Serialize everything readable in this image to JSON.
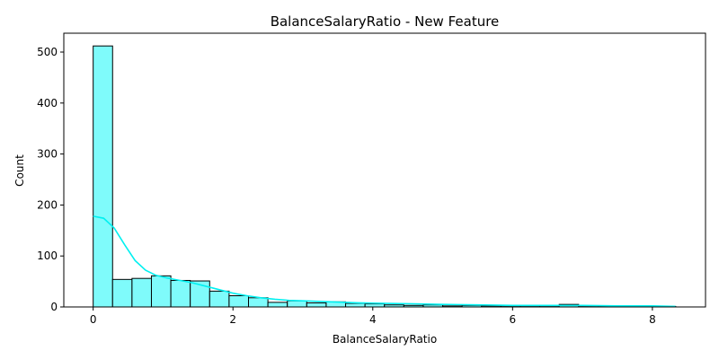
{
  "chart_data": {
    "type": "bar",
    "title": "BalanceSalaryRatio - New Feature",
    "xlabel": "BalanceSalaryRatio",
    "ylabel": "Count",
    "xlim": [
      -0.42,
      8.76
    ],
    "ylim": [
      0,
      537
    ],
    "xticks": [
      0,
      2,
      4,
      6,
      8
    ],
    "yticks": [
      0,
      100,
      200,
      300,
      400,
      500
    ],
    "bin_width": 0.2778,
    "bins": [
      {
        "start": 0.0,
        "count": 512
      },
      {
        "start": 0.2778,
        "count": 54
      },
      {
        "start": 0.5556,
        "count": 56
      },
      {
        "start": 0.8333,
        "count": 61
      },
      {
        "start": 1.1111,
        "count": 52
      },
      {
        "start": 1.3889,
        "count": 51
      },
      {
        "start": 1.6667,
        "count": 31
      },
      {
        "start": 1.9444,
        "count": 22
      },
      {
        "start": 2.2222,
        "count": 18
      },
      {
        "start": 2.5,
        "count": 9
      },
      {
        "start": 2.7778,
        "count": 12
      },
      {
        "start": 3.0556,
        "count": 8
      },
      {
        "start": 3.3333,
        "count": 10
      },
      {
        "start": 3.6111,
        "count": 7
      },
      {
        "start": 3.8889,
        "count": 6
      },
      {
        "start": 4.1667,
        "count": 4
      },
      {
        "start": 4.4444,
        "count": 3
      },
      {
        "start": 4.7222,
        "count": 4
      },
      {
        "start": 5.0,
        "count": 2
      },
      {
        "start": 5.2778,
        "count": 3
      },
      {
        "start": 5.5556,
        "count": 2
      },
      {
        "start": 5.8333,
        "count": 2
      },
      {
        "start": 6.1111,
        "count": 2
      },
      {
        "start": 6.3889,
        "count": 2
      },
      {
        "start": 6.6667,
        "count": 5
      },
      {
        "start": 6.9444,
        "count": 2
      },
      {
        "start": 7.2222,
        "count": 1
      },
      {
        "start": 7.5,
        "count": 1
      },
      {
        "start": 7.7778,
        "count": 1
      },
      {
        "start": 8.0556,
        "count": 1
      }
    ],
    "kde": {
      "x": [
        0.0,
        0.15,
        0.3,
        0.45,
        0.6,
        0.75,
        0.9,
        1.05,
        1.2,
        1.4,
        1.6,
        1.8,
        2.0,
        2.2,
        2.4,
        2.6,
        2.8,
        3.0,
        3.4,
        3.8,
        4.2,
        4.6,
        5.0,
        5.5,
        6.0,
        6.5,
        7.0,
        7.5,
        8.0,
        8.33
      ],
      "y": [
        178,
        174,
        155,
        122,
        91,
        72,
        62,
        57,
        53,
        48,
        41,
        34,
        27,
        22,
        18,
        15,
        13,
        12,
        10,
        8,
        7,
        6,
        5,
        4,
        3,
        3,
        3,
        2,
        2,
        1
      ]
    },
    "bar_color": "#7ffbfb",
    "bar_edge_color": "#000000",
    "kde_color": "#00f0f0",
    "grid": false,
    "legend": "none"
  }
}
